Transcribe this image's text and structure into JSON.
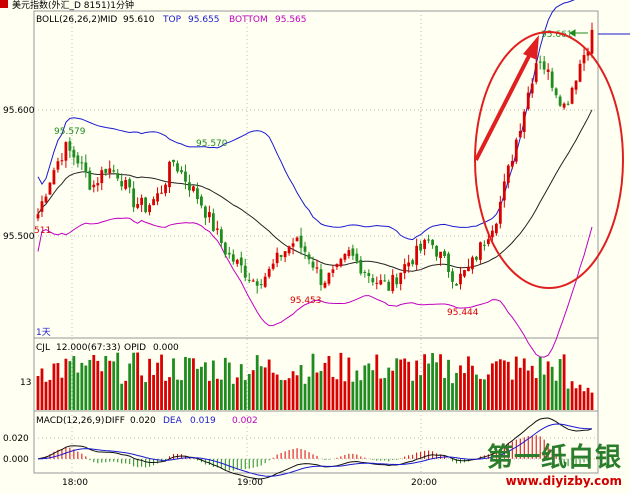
{
  "header": {
    "symbol_line": "美元指数(外汇_D 8151)1分钟"
  },
  "price_panel": {
    "legend": {
      "indicator": "BOLL(26,26,2)",
      "mid_label": "MID",
      "mid_value": "95.610",
      "top_label": "TOP",
      "top_value": "95.655",
      "bottom_label": "BOTTOM",
      "bottom_value": "95.565"
    },
    "y_ticks": [
      "95.600",
      "95.500"
    ],
    "left_partial_label": "511",
    "period_label": "1天",
    "annotations": [
      "95.579",
      "95.570",
      "95.453",
      "95.444",
      "95.661"
    ]
  },
  "volume_panel": {
    "legend": {
      "indicator": "CJL",
      "value": "12.000(67:33)",
      "opid_label": "OPID",
      "opid_value": "0.000"
    },
    "y_tick": "13"
  },
  "macd_panel": {
    "legend": {
      "indicator": "MACD(12,26,9)",
      "diff_label": "DIFF",
      "diff_value": "0.020",
      "dea_label": "DEA",
      "dea_value": "0.019",
      "macd_value": "0.002"
    },
    "y_ticks": [
      "0.020",
      "0.000"
    ]
  },
  "x_axis": {
    "ticks": [
      "18:00",
      "19:00",
      "20:00"
    ]
  },
  "watermark": {
    "text": "第一纸白银",
    "url": "www.diyizby.com"
  },
  "colors": {
    "up": "#d80000",
    "down": "#1e8c1e",
    "mid": "#222222",
    "top": "#1a1ad0",
    "bottom": "#c000c0",
    "highlight": "#e02020"
  },
  "chart_data": {
    "type": "candlestick",
    "timeframe": "1m",
    "price_ylim": [
      95.43,
      95.67
    ],
    "x_ticks": [
      "18:00",
      "19:00",
      "20:00"
    ],
    "boll": {
      "mid": 95.61,
      "top": 95.655,
      "bottom": 95.565
    },
    "marked_prices": [
      {
        "label": "95.579",
        "kind": "high"
      },
      {
        "label": "95.570",
        "kind": "high"
      },
      {
        "label": "95.453",
        "kind": "low"
      },
      {
        "label": "95.444",
        "kind": "low"
      },
      {
        "label": "95.661",
        "kind": "high"
      }
    ],
    "close_path": [
      95.52,
      95.55,
      95.57,
      95.56,
      95.54,
      95.555,
      95.55,
      95.53,
      95.525,
      95.535,
      95.56,
      95.545,
      95.53,
      95.51,
      95.49,
      95.48,
      95.47,
      95.475,
      95.49,
      95.5,
      95.49,
      95.47,
      95.475,
      95.49,
      95.48,
      95.47,
      95.465,
      95.48,
      95.49,
      95.5,
      95.485,
      95.47,
      95.48,
      95.5,
      95.52,
      95.56,
      95.6,
      95.64,
      95.62,
      95.6,
      95.63,
      95.655
    ],
    "volume_ytick": 13,
    "macd": {
      "diff": 0.02,
      "dea": 0.019,
      "macd": 0.002,
      "ylim": [
        -0.012,
        0.03
      ]
    }
  }
}
